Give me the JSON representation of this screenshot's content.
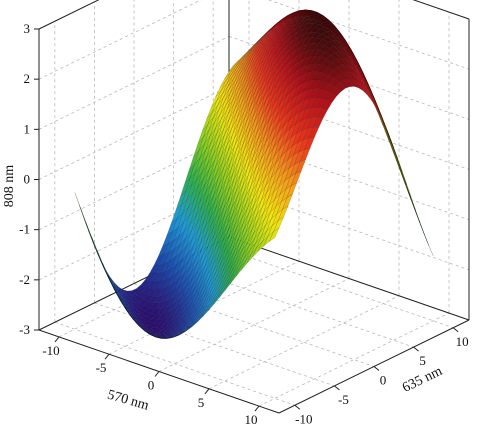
{
  "chart_data": {
    "type": "surface3d",
    "title": "",
    "xlabel": "570 nm",
    "ylabel": "635 nm",
    "zlabel": "808 nm",
    "xlim": [
      -12,
      12
    ],
    "ylim": [
      -12,
      12
    ],
    "zlim": [
      -3,
      3
    ],
    "x_ticks": [
      -10,
      -5,
      0,
      5,
      10
    ],
    "y_ticks": [
      -10,
      -5,
      0,
      5,
      10
    ],
    "z_ticks": [
      -3,
      -2,
      -1,
      0,
      1,
      2,
      3
    ],
    "surface_function": "z = 3 * sin(0.16*x + 0.18*y + 0.35) * cos(0.05*x - 0.06*y)",
    "colormap": [
      "#2b0d6e",
      "#1c4fb0",
      "#1f9ad6",
      "#2db04a",
      "#8fcf1f",
      "#f2e60f",
      "#f29a1a",
      "#e8341c",
      "#b0101a",
      "#3a0a0a"
    ],
    "grid": true,
    "legend": "none"
  }
}
